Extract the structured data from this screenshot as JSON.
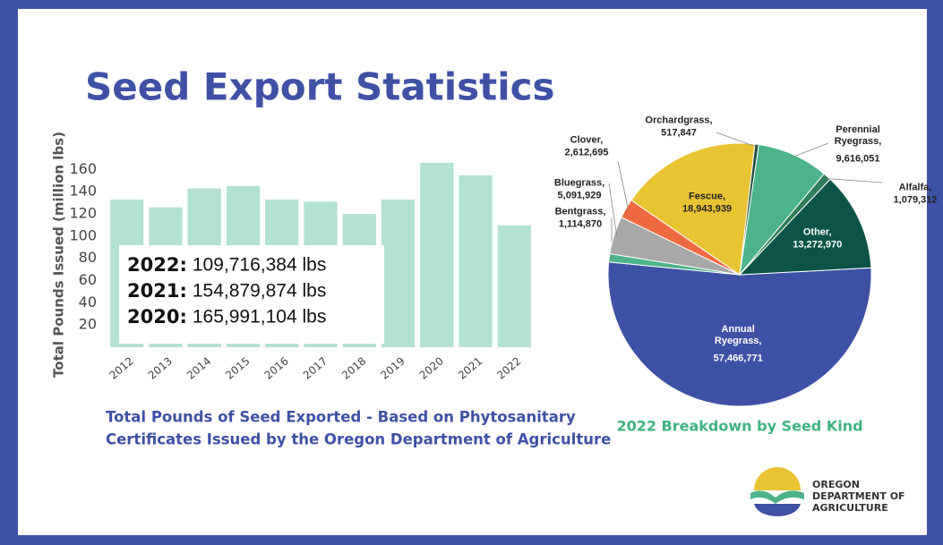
{
  "title": "Seed Export Statistics",
  "chart_data": [
    {
      "type": "bar",
      "y_label": "Total Pounds Issued (million lbs)",
      "categories": [
        "2012",
        "2013",
        "2014",
        "2015",
        "2016",
        "2017",
        "2018",
        "2019",
        "2020",
        "2021",
        "2022"
      ],
      "values": [
        133,
        126,
        143,
        145,
        133,
        131,
        120,
        133,
        165.991104,
        154.879874,
        109.716384
      ],
      "color": "#b3e2d1",
      "ylim": [
        0,
        170
      ],
      "yticks": [
        20,
        40,
        60,
        80,
        100,
        120,
        140,
        160
      ],
      "annotations": [
        {
          "label": "2022:",
          "text": "109,716,384 lbs"
        },
        {
          "label": "2021:",
          "text": "154,879,874 lbs"
        },
        {
          "label": "2020:",
          "text": "165,991,104 lbs"
        }
      ],
      "caption": [
        "Total Pounds of Seed Exported - Based on Phytosanitary",
        "Certificates Issued by the Oregon Department of Agriculture"
      ]
    },
    {
      "type": "pie",
      "title": "2022 Breakdown by Seed Kind",
      "categories": [
        "Annual Ryegrass,",
        "Bentgrass,",
        "Bluegrass,",
        "Clover,",
        "Fescue,",
        "Orchardgrass,",
        "Perennial Ryegrass,",
        "Alfalfa,",
        "Other,"
      ],
      "values": [
        57466771,
        1114870,
        5091929,
        2612695,
        18943939,
        517847,
        9616051,
        1079312,
        13272970
      ],
      "value_labels": [
        "57,466,771",
        "1,114,870",
        "5,091,929",
        "2,612,695",
        "18,943,939",
        "517,847",
        "9,616,051",
        "1,079,312",
        "13,272,970"
      ],
      "colors": [
        "#3f51a5",
        "#4db38a",
        "#a8a8a8",
        "#ef6a42",
        "#e8c433",
        "#1f4d3d",
        "#4db38a",
        "#2f7d5c",
        "#0b5447"
      ]
    }
  ],
  "logo": {
    "lines": [
      "OREGON",
      "DEPARTMENT OF",
      "AGRICULTURE"
    ]
  }
}
